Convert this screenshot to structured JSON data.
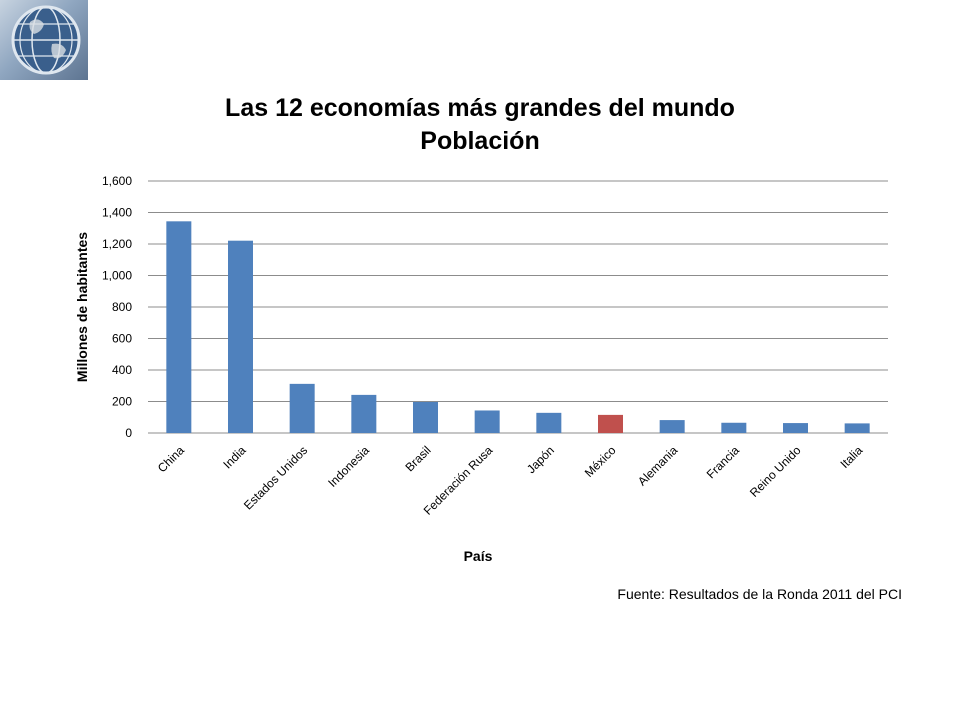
{
  "chart_data": {
    "type": "bar",
    "title": [
      "Las 12 economías más grandes del mundo",
      "Población"
    ],
    "xlabel": "País",
    "ylabel": "Millones de habitantes",
    "categories": [
      "China",
      "India",
      "Estados Unidos",
      "Indonesia",
      "Brasil",
      "Federación Rusa",
      "Japón",
      "México",
      "Alemania",
      "Francia",
      "Reino Unido",
      "Italia"
    ],
    "values": [
      1344,
      1221,
      312,
      242,
      197,
      143,
      128,
      115,
      82,
      65,
      63,
      61
    ],
    "highlight_index": 7,
    "ylim": [
      0,
      1600
    ],
    "yticks": [
      "0",
      "200",
      "400",
      "600",
      "800",
      "1,000",
      "1,200",
      "1,400",
      "1,600"
    ],
    "grid": true,
    "colors": {
      "bar": "#4f81bd",
      "highlight": "#c0504d",
      "grid": "#8c8c8c"
    }
  },
  "source": "Fuente: Resultados de la Ronda 2011 del PCI",
  "logo": {
    "icon": "globe-icon"
  }
}
